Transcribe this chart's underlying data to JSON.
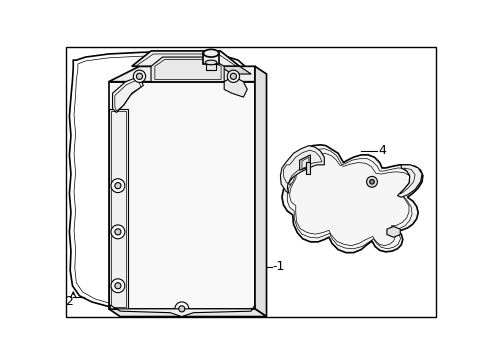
{
  "background_color": "#ffffff",
  "line_color": "#000000",
  "lw_main": 1.2,
  "lw_med": 0.8,
  "lw_thin": 0.5,
  "label_fontsize": 9,
  "fig_width": 4.9,
  "fig_height": 3.6,
  "dpi": 100
}
